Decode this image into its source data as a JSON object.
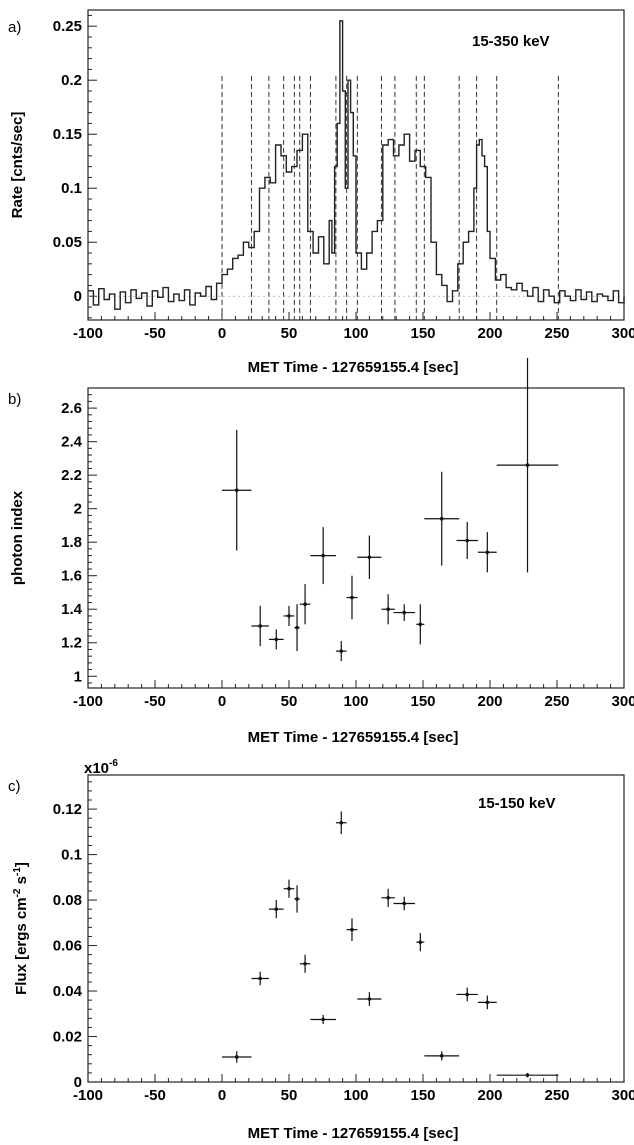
{
  "chart_data": [
    {
      "panel": "a)",
      "type": "line",
      "annotation": "15-350 keV",
      "xlabel": "MET Time - 127659155.4 [sec]",
      "ylabel": "Rate [cnts/sec]",
      "xlim": [
        -100,
        300
      ],
      "ylim": [
        -0.022,
        0.265
      ],
      "xticks": [
        -100,
        -50,
        0,
        50,
        100,
        150,
        200,
        250,
        300
      ],
      "xtick_labels": [
        "-100",
        "-50",
        "0",
        "50",
        "100",
        "150",
        "200",
        "250",
        "300"
      ],
      "yticks": [
        0,
        0.05,
        0.1,
        0.15,
        0.2,
        0.25
      ],
      "ytick_labels": [
        "0",
        "0.05",
        "0.1",
        "0.15",
        "0.2",
        "0.25"
      ],
      "interval_boundaries": [
        0,
        22,
        35,
        46,
        54,
        58,
        66,
        85,
        93,
        101,
        119,
        129,
        145,
        151,
        177,
        190,
        205,
        251
      ],
      "series": [
        {
          "x": [
            -100,
            -96,
            -92,
            -88,
            -84,
            -80,
            -76,
            -72,
            -68,
            -64,
            -60,
            -56,
            -52,
            -48,
            -44,
            -40,
            -36,
            -32,
            -28,
            -24,
            -20,
            -16,
            -12,
            -8,
            -4,
            0,
            4,
            8,
            12,
            16,
            20,
            24,
            28,
            32,
            36,
            40,
            44,
            48,
            52,
            56,
            60,
            64,
            68,
            72,
            76,
            80,
            82,
            84,
            86,
            88,
            90,
            92,
            94,
            96,
            98,
            100,
            104,
            108,
            112,
            116,
            120,
            124,
            128,
            132,
            136,
            140,
            144,
            148,
            152,
            156,
            160,
            164,
            168,
            172,
            176,
            180,
            184,
            188,
            190,
            192,
            194,
            196,
            198,
            200,
            204,
            208,
            212,
            216,
            220,
            224,
            228,
            232,
            236,
            240,
            244,
            248,
            252,
            256,
            260,
            264,
            268,
            272,
            276,
            280,
            284,
            288,
            292,
            296,
            300
          ],
          "values": [
            0.005,
            -0.008,
            0.007,
            -0.003,
            0.002,
            -0.012,
            0.004,
            -0.006,
            0.006,
            -0.002,
            0.003,
            -0.009,
            0.005,
            -0.001,
            0.008,
            -0.005,
            0.002,
            -0.004,
            0.006,
            -0.008,
            0.003,
            0.0,
            0.009,
            -0.003,
            0.012,
            0.02,
            0.025,
            0.035,
            0.038,
            0.05,
            0.045,
            0.06,
            0.1,
            0.11,
            0.105,
            0.14,
            0.13,
            0.115,
            0.12,
            0.135,
            0.15,
            0.06,
            0.04,
            0.055,
            0.03,
            0.07,
            0.04,
            0.12,
            0.16,
            0.255,
            0.19,
            0.1,
            0.2,
            0.17,
            0.13,
            0.04,
            0.025,
            0.04,
            0.06,
            0.07,
            0.14,
            0.145,
            0.13,
            0.14,
            0.15,
            0.125,
            0.135,
            0.12,
            0.11,
            0.05,
            0.02,
            0.01,
            -0.005,
            0.005,
            0.03,
            0.05,
            0.06,
            0.1,
            0.14,
            0.145,
            0.13,
            0.12,
            0.06,
            0.035,
            0.015,
            0.02,
            0.008,
            0.006,
            0.012,
            0.005,
            0.0,
            0.008,
            -0.005,
            0.006,
            0.0,
            -0.006,
            0.005,
            0.0,
            -0.004,
            0.006,
            -0.003,
            0.004,
            -0.005,
            0.002,
            0.0,
            -0.004,
            0.005,
            -0.006,
            0.0
          ]
        }
      ]
    },
    {
      "panel": "b)",
      "type": "scatter",
      "xlabel": "MET Time - 127659155.4 [sec]",
      "ylabel": "photon index",
      "xlim": [
        -100,
        300
      ],
      "ylim": [
        0.93,
        2.72
      ],
      "xticks": [
        -100,
        -50,
        0,
        50,
        100,
        150,
        200,
        250,
        300
      ],
      "xtick_labels": [
        "-100",
        "-50",
        "0",
        "50",
        "100",
        "150",
        "200",
        "250",
        "300"
      ],
      "yticks": [
        1,
        1.2,
        1.4,
        1.6,
        1.8,
        2,
        2.2,
        2.4,
        2.6
      ],
      "ytick_labels": [
        "1",
        "1.2",
        "1.4",
        "1.6",
        "1.8",
        "2",
        "2.2",
        "2.4",
        "2.6"
      ],
      "series": [
        {
          "x": [
            11,
            28.5,
            40.5,
            50,
            56,
            62,
            75.5,
            89,
            97,
            110,
            124,
            136,
            148,
            164,
            183,
            198,
            228
          ],
          "x_err": [
            11,
            6.5,
            5.5,
            4,
            2,
            4,
            9.5,
            4,
            4,
            9,
            5,
            8,
            3,
            13,
            8,
            7,
            23
          ],
          "values": [
            2.11,
            1.3,
            1.22,
            1.36,
            1.29,
            1.43,
            1.72,
            1.15,
            1.47,
            1.71,
            1.4,
            1.38,
            1.31,
            1.94,
            1.81,
            1.74,
            2.26
          ],
          "y_err": [
            0.36,
            0.12,
            0.06,
            0.06,
            0.14,
            0.12,
            0.17,
            0.06,
            0.13,
            0.13,
            0.09,
            0.05,
            0.12,
            0.28,
            0.11,
            0.12,
            0.64
          ]
        }
      ]
    },
    {
      "panel": "c)",
      "type": "scatter",
      "annotation": "15-150 keV",
      "multiplier": "x10",
      "multiplier_exp": "-6",
      "xlabel": "MET Time - 127659155.4 [sec]",
      "ylabel": "Flux [ergs cm",
      "ylabel_sup1": "-2",
      "ylabel_mid": " s",
      "ylabel_sup2": "-1",
      "ylabel_end": "]",
      "xlim": [
        -100,
        300
      ],
      "ylim": [
        0,
        0.135
      ],
      "xticks": [
        -100,
        -50,
        0,
        50,
        100,
        150,
        200,
        250,
        300
      ],
      "xtick_labels": [
        "-100",
        "-50",
        "0",
        "50",
        "100",
        "150",
        "200",
        "250",
        "300"
      ],
      "yticks": [
        0,
        0.02,
        0.04,
        0.06,
        0.08,
        0.1,
        0.12
      ],
      "ytick_labels": [
        "0",
        "0.02",
        "0.04",
        "0.06",
        "0.08",
        "0.1",
        "0.12"
      ],
      "series": [
        {
          "x": [
            11,
            28.5,
            40.5,
            50,
            56,
            62,
            75.5,
            89,
            97,
            110,
            124,
            136,
            148,
            164,
            183,
            198,
            228
          ],
          "x_err": [
            11,
            6.5,
            5.5,
            4,
            2,
            4,
            9.5,
            4,
            4,
            9,
            5,
            8,
            3,
            13,
            8,
            7,
            23
          ],
          "values": [
            0.011,
            0.0455,
            0.076,
            0.085,
            0.0805,
            0.052,
            0.0275,
            0.114,
            0.067,
            0.0365,
            0.081,
            0.0785,
            0.0615,
            0.0115,
            0.0385,
            0.035,
            0.003
          ],
          "y_err": [
            0.0025,
            0.003,
            0.004,
            0.004,
            0.006,
            0.004,
            0.002,
            0.005,
            0.005,
            0.003,
            0.004,
            0.003,
            0.004,
            0.002,
            0.003,
            0.003,
            0.001
          ]
        }
      ]
    }
  ]
}
